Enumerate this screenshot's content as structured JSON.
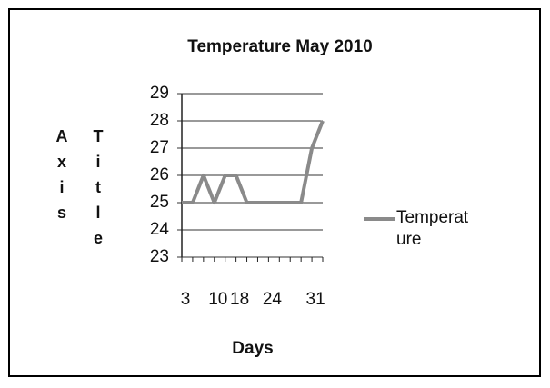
{
  "chart_data": {
    "type": "line",
    "title": "Temperature May 2010",
    "x_label": "Days",
    "y_label": "Axis Title",
    "categories": [
      "3",
      null,
      null,
      "10",
      null,
      "18",
      null,
      null,
      "24",
      null,
      null,
      null,
      "31",
      null
    ],
    "series": [
      {
        "name": "Temperature",
        "color": "#8a8a8a",
        "values": [
          25,
          25,
          26,
          25,
          26,
          26,
          25,
          25,
          25,
          25,
          25,
          25,
          27,
          28
        ]
      }
    ],
    "ylim": [
      23,
      29
    ],
    "yticks": [
      23,
      24,
      25,
      26,
      27,
      28,
      29
    ],
    "grid": true,
    "legend": "right"
  }
}
